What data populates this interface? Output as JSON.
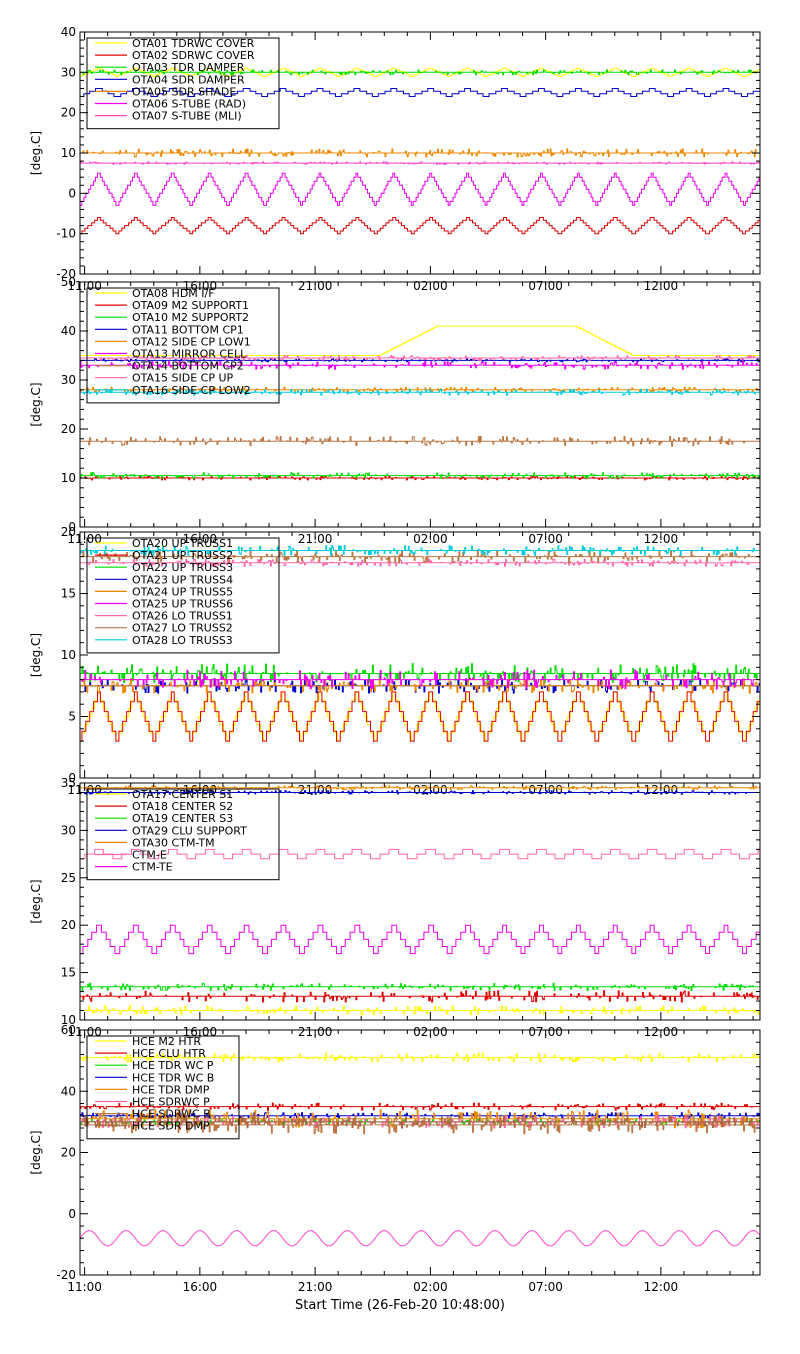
{
  "figure": {
    "xlabel": "Start Time (26-Feb-20 10:48:00)",
    "x_tick_labels": [
      "11:00",
      "16:00",
      "21:00",
      "02:00",
      "07:00",
      "12:00"
    ]
  },
  "chart_data": [
    {
      "type": "line",
      "ylabel": "[deg.C]",
      "ylim": [
        -20,
        40
      ],
      "yticks": [
        -20,
        -10,
        0,
        10,
        20,
        30,
        40
      ],
      "xlim_hours": [
        0,
        29.5
      ],
      "x_tick_labels": [
        "11:00",
        "16:00",
        "21:00",
        "02:00",
        "07:00",
        "12:00"
      ],
      "x_ticks_hours": [
        0.2,
        5.2,
        10.2,
        15.2,
        20.2,
        25.2
      ],
      "legend": "top-left",
      "series": [
        {
          "name": "OTA01 TDRWC COVER",
          "color": "#ffff00",
          "kind": "wave",
          "lo": 29,
          "hi": 31,
          "period": 1.6,
          "stairs": 5
        },
        {
          "name": "OTA02 SDRWC COVER",
          "color": "#dd0000",
          "kind": "wave",
          "lo": -10,
          "hi": -6,
          "period": 1.6,
          "stairs": 6
        },
        {
          "name": "OTA03 TDR DAMPER",
          "color": "#00dd00",
          "kind": "flat",
          "level": 30,
          "noise": 0.6
        },
        {
          "name": "OTA04 SDR DAMPER",
          "color": "#0000cc",
          "kind": "wave",
          "lo": 24,
          "hi": 26,
          "period": 1.6,
          "stairs": 3
        },
        {
          "name": "OTA05 SDR SHADE",
          "color": "#ee8800",
          "kind": "flat",
          "level": 10,
          "noise": 1
        },
        {
          "name": "OTA06 S-TUBE (RAD)",
          "color": "#ee00ee",
          "kind": "wave",
          "lo": -3,
          "hi": 5,
          "period": 1.6,
          "stairs": 8
        },
        {
          "name": "OTA07 S-TUBE (MLI)",
          "color": "#ff44cc",
          "kind": "flat",
          "level": 7.5,
          "noise": 0.3
        }
      ]
    },
    {
      "type": "line",
      "ylabel": "[deg.C]",
      "ylim": [
        0,
        50
      ],
      "yticks": [
        0,
        10,
        20,
        30,
        40,
        50
      ],
      "xlim_hours": [
        0,
        29.5
      ],
      "x_tick_labels": [
        "11:00",
        "16:00",
        "21:00",
        "02:00",
        "07:00",
        "12:00"
      ],
      "x_ticks_hours": [
        0.2,
        5.2,
        10.2,
        15.2,
        20.2,
        25.2
      ],
      "legend": "top-left",
      "series": [
        {
          "name": "OTA08 HDM I/F",
          "color": "#ffff00",
          "kind": "bump",
          "base": 35,
          "peak": 41,
          "start": 13,
          "end": 24
        },
        {
          "name": "OTA09 M2 SUPPORT1",
          "color": "#dd0000",
          "kind": "flat",
          "level": 10,
          "noise": 0.4
        },
        {
          "name": "OTA10 M2 SUPPORT2",
          "color": "#00dd00",
          "kind": "flat",
          "level": 10.5,
          "noise": 0.6
        },
        {
          "name": "OTA11 BOTTOM CP1",
          "color": "#0000cc",
          "kind": "flat",
          "level": 34,
          "noise": 0.3
        },
        {
          "name": "OTA12 SIDE CP LOW1",
          "color": "#ee8800",
          "kind": "flat",
          "level": 28,
          "noise": 0.5
        },
        {
          "name": "OTA13 MIRROR CELL",
          "color": "#ee00ee",
          "kind": "flat",
          "level": 33,
          "noise": 0.8
        },
        {
          "name": "OTA14 BOTTOM CP2",
          "color": "#bb7744",
          "kind": "flat",
          "level": 17.5,
          "noise": 1
        },
        {
          "name": "OTA15 SIDE CP UP",
          "color": "#ff66aa",
          "kind": "flat",
          "level": 34.5,
          "noise": 0.5
        },
        {
          "name": "OTA16 SIDE CP LOW2",
          "color": "#00ccdd",
          "kind": "flat",
          "level": 27.5,
          "noise": 0.6
        }
      ]
    },
    {
      "type": "line",
      "ylabel": "[deg.C]",
      "ylim": [
        0,
        20
      ],
      "yticks": [
        0,
        5,
        10,
        15,
        20
      ],
      "xlim_hours": [
        0,
        29.5
      ],
      "x_tick_labels": [
        "11:00",
        "16:00",
        "21:00",
        "02:00",
        "07:00",
        "12:00"
      ],
      "x_ticks_hours": [
        0.2,
        5.2,
        10.2,
        15.2,
        20.2,
        25.2
      ],
      "legend": "top-left",
      "series": [
        {
          "name": "OTA20 UP TRUSS1",
          "color": "#ffff00",
          "kind": "wave",
          "lo": 3,
          "hi": 7,
          "period": 1.6,
          "stairs": 6
        },
        {
          "name": "OTA21 UP TRUSS2",
          "color": "#dd0000",
          "kind": "wave",
          "lo": 3,
          "hi": 7,
          "period": 1.6,
          "stairs": 5
        },
        {
          "name": "OTA22 UP TRUSS3",
          "color": "#00dd00",
          "kind": "flat",
          "level": 8.5,
          "noise": 0.8
        },
        {
          "name": "OTA23 UP TRUSS4",
          "color": "#0000cc",
          "kind": "flat",
          "level": 7.5,
          "noise": 0.6
        },
        {
          "name": "OTA24 UP TRUSS5",
          "color": "#ee8800",
          "kind": "flat",
          "level": 7.5,
          "noise": 0.6
        },
        {
          "name": "OTA25 UP TRUSS6",
          "color": "#ee00ee",
          "kind": "flat",
          "level": 8,
          "noise": 0.8
        },
        {
          "name": "OTA26 LO TRUSS1",
          "color": "#ff66aa",
          "kind": "flat",
          "level": 17.5,
          "noise": 0.3
        },
        {
          "name": "OTA27 LO TRUSS2",
          "color": "#bb7744",
          "kind": "flat",
          "level": 18,
          "noise": 0.5
        },
        {
          "name": "OTA28 LO TRUSS3",
          "color": "#00ccdd",
          "kind": "flat",
          "level": 18.5,
          "noise": 0.4
        }
      ]
    },
    {
      "type": "line",
      "ylabel": "[deg.C]",
      "ylim": [
        10,
        35
      ],
      "yticks": [
        10,
        15,
        20,
        25,
        30,
        35
      ],
      "xlim_hours": [
        0,
        29.5
      ],
      "x_tick_labels": [
        "11:00",
        "16:00",
        "21:00",
        "02:00",
        "07:00",
        "12:00"
      ],
      "x_ticks_hours": [
        0.2,
        5.2,
        10.2,
        15.2,
        20.2,
        25.2
      ],
      "legend": "top-left",
      "series": [
        {
          "name": "OTA17 CENTER S1",
          "color": "#ffff00",
          "kind": "flat",
          "level": 11,
          "noise": 0.5
        },
        {
          "name": "OTA18 CENTER S2",
          "color": "#dd0000",
          "kind": "flat",
          "level": 12.5,
          "noise": 0.6
        },
        {
          "name": "OTA19 CENTER S3",
          "color": "#00dd00",
          "kind": "flat",
          "level": 13.5,
          "noise": 0.4
        },
        {
          "name": "OTA29 CLU SUPPORT",
          "color": "#0000cc",
          "kind": "flat",
          "level": 34,
          "noise": 0.2
        },
        {
          "name": "OTA30 CTM-TM",
          "color": "#ee8800",
          "kind": "flat",
          "level": 34.5,
          "noise": 0.2
        },
        {
          "name": "CTM-E",
          "color": "#ff66aa",
          "kind": "wave",
          "lo": 27,
          "hi": 28,
          "period": 1.6,
          "stairs": 2
        },
        {
          "name": "CTM-TE",
          "color": "#ee00ee",
          "kind": "wave",
          "lo": 17,
          "hi": 20,
          "period": 1.6,
          "stairs": 4
        }
      ]
    },
    {
      "type": "line",
      "ylabel": "[deg.C]",
      "ylim": [
        -20,
        60
      ],
      "yticks": [
        -20,
        0,
        20,
        40,
        60
      ],
      "xlim_hours": [
        0,
        29.5
      ],
      "x_tick_labels": [
        "11:00",
        "16:00",
        "21:00",
        "02:00",
        "07:00",
        "12:00"
      ],
      "x_ticks_hours": [
        0.2,
        5.2,
        10.2,
        15.2,
        20.2,
        25.2
      ],
      "legend": "top-left",
      "series": [
        {
          "name": "HCE M2 HTR",
          "color": "#ffff00",
          "kind": "flat",
          "level": 51,
          "noise": 1.5
        },
        {
          "name": "HCE CLU HTR",
          "color": "#dd0000",
          "kind": "flat",
          "level": 35,
          "noise": 1.2
        },
        {
          "name": "HCE TDR WC P",
          "color": "#00dd00",
          "kind": "flat",
          "level": 30,
          "noise": 1
        },
        {
          "name": "HCE TDR WC B",
          "color": "#0000cc",
          "kind": "flat",
          "level": 32,
          "noise": 1
        },
        {
          "name": "HCE TDR DMP",
          "color": "#ee8800",
          "kind": "flat",
          "level": 31,
          "noise": 3
        },
        {
          "name": "HCE SDRWC P",
          "color": "#ff66aa",
          "kind": "flat",
          "level": 30,
          "noise": 2
        },
        {
          "name": "HCE SDRWC B",
          "color": "#bb7744",
          "kind": "flat",
          "level": 29,
          "noise": 3
        },
        {
          "name": "HCE SDR DMP",
          "color": "#aa6644",
          "kind": "flat",
          "level": 30,
          "noise": 2
        },
        {
          "name": "",
          "color": "#ff44cc",
          "kind": "sine",
          "mid": -8,
          "amp": 2.5,
          "period": 1.6
        }
      ]
    }
  ]
}
